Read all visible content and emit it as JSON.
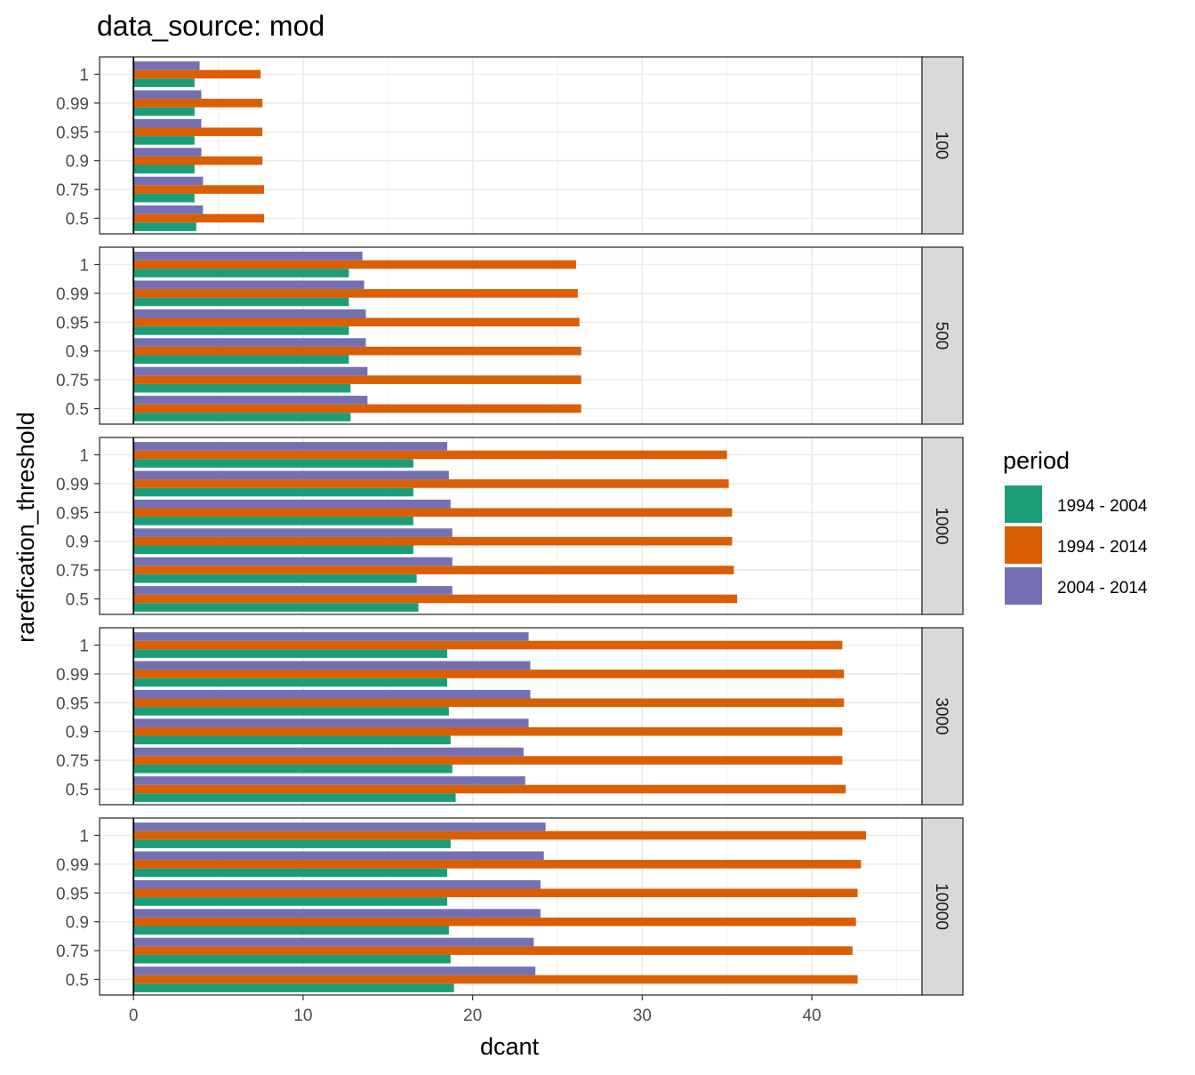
{
  "chart_data": {
    "type": "bar",
    "orientation": "horizontal",
    "title": "data_source: mod",
    "xlabel": "dcant",
    "ylabel": "rarefication_threshold",
    "xlim": [
      -2,
      46.5
    ],
    "xticks": [
      0,
      10,
      20,
      30,
      40
    ],
    "grid": true,
    "legend": {
      "title": "period",
      "position": "right"
    },
    "categories": [
      "1",
      "0.99",
      "0.95",
      "0.9",
      "0.75",
      "0.5"
    ],
    "series": [
      {
        "name": "1994 - 2004",
        "color": "#1b9e77"
      },
      {
        "name": "1994 - 2014",
        "color": "#d95f02"
      },
      {
        "name": "2004 - 2014",
        "color": "#7570b3"
      }
    ],
    "facets": [
      {
        "label": "100",
        "values": {
          "1994 - 2004": [
            3.6,
            3.6,
            3.6,
            3.6,
            3.6,
            3.7
          ],
          "1994 - 2014": [
            7.5,
            7.6,
            7.6,
            7.6,
            7.7,
            7.7
          ],
          "2004 - 2014": [
            3.9,
            4.0,
            4.0,
            4.0,
            4.1,
            4.1
          ]
        }
      },
      {
        "label": "500",
        "values": {
          "1994 - 2004": [
            12.7,
            12.7,
            12.7,
            12.7,
            12.8,
            12.8
          ],
          "1994 - 2014": [
            26.1,
            26.2,
            26.3,
            26.4,
            26.4,
            26.4
          ],
          "2004 - 2014": [
            13.5,
            13.6,
            13.7,
            13.7,
            13.8,
            13.8
          ]
        }
      },
      {
        "label": "1000",
        "values": {
          "1994 - 2004": [
            16.5,
            16.5,
            16.5,
            16.5,
            16.7,
            16.8
          ],
          "1994 - 2014": [
            35.0,
            35.1,
            35.3,
            35.3,
            35.4,
            35.6
          ],
          "2004 - 2014": [
            18.5,
            18.6,
            18.7,
            18.8,
            18.8,
            18.8
          ]
        }
      },
      {
        "label": "3000",
        "values": {
          "1994 - 2004": [
            18.5,
            18.5,
            18.6,
            18.7,
            18.8,
            19.0
          ],
          "1994 - 2014": [
            41.8,
            41.9,
            41.9,
            41.8,
            41.8,
            42.0
          ],
          "2004 - 2014": [
            23.3,
            23.4,
            23.4,
            23.3,
            23.0,
            23.1
          ]
        }
      },
      {
        "label": "10000",
        "values": {
          "1994 - 2004": [
            18.7,
            18.5,
            18.5,
            18.6,
            18.7,
            18.9
          ],
          "1994 - 2014": [
            43.2,
            42.9,
            42.7,
            42.6,
            42.4,
            42.7
          ],
          "2004 - 2014": [
            24.3,
            24.2,
            24.0,
            24.0,
            23.6,
            23.7
          ]
        }
      }
    ]
  }
}
